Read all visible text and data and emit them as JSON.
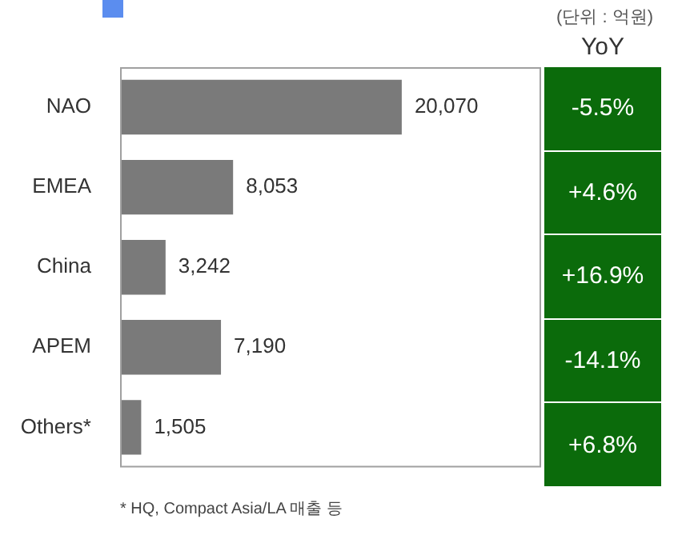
{
  "chart_data": {
    "type": "bar",
    "orientation": "horizontal",
    "categories": [
      "NAO",
      "EMEA",
      "China",
      "APEM",
      "Others*"
    ],
    "values": [
      20070,
      8053,
      3242,
      7190,
      1505
    ],
    "color": "#7a7a7a",
    "value_labels": [
      "20,070",
      "8,053",
      "3,242",
      "7,190",
      "1,505"
    ],
    "grid": false,
    "legend": false,
    "annotations": [
      "(단위 : 억원)",
      "YoY",
      "* HQ, Compact Asia/LA 매출 등",
      "-5.5%",
      "+4.6%",
      "+16.9%",
      "-14.1%",
      "+6.8%"
    ]
  }
}
